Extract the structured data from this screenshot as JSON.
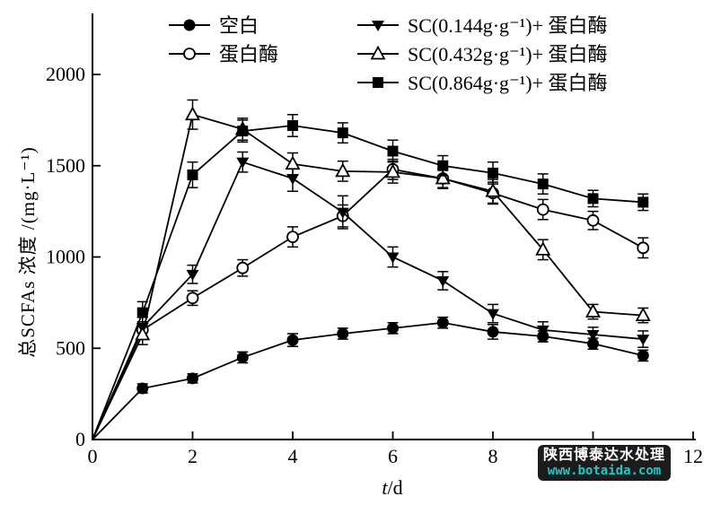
{
  "watermark": {
    "line1": "陕西博泰达水处理",
    "line2": "www.botaida.com",
    "bg_color": "#1c1c1c",
    "text_color": "#ffffff",
    "url_color": "#1fc9c9"
  },
  "chart_data": {
    "type": "line",
    "title": "",
    "xlabel_italic": "t",
    "xlabel_rest": "/d",
    "ylabel": "总SCFAs 浓度 /(mg·L⁻¹)",
    "xlim": [
      0,
      12
    ],
    "ylim": [
      0,
      2000
    ],
    "xticks": [
      0,
      2,
      4,
      6,
      8,
      10,
      12
    ],
    "yticks": [
      0,
      500,
      1000,
      1500,
      2000
    ],
    "grid": false,
    "legend_position": "top",
    "line_color": "#000000",
    "background": "#ffffff",
    "x": [
      0,
      1,
      2,
      3,
      4,
      5,
      6,
      7,
      8,
      9,
      10,
      11
    ],
    "series": [
      {
        "key": "blank",
        "name": "空白",
        "marker": "circle-filled",
        "values": [
          0,
          280,
          335,
          450,
          545,
          580,
          610,
          640,
          590,
          565,
          525,
          460
        ],
        "errors": [
          0,
          25,
          25,
          30,
          35,
          30,
          30,
          30,
          40,
          30,
          30,
          30
        ]
      },
      {
        "key": "protease",
        "name": "蛋白酶",
        "marker": "circle-open",
        "values": [
          0,
          600,
          775,
          940,
          1110,
          1225,
          1480,
          1430,
          1350,
          1260,
          1200,
          1050
        ],
        "errors": [
          0,
          45,
          40,
          45,
          55,
          60,
          55,
          50,
          60,
          55,
          50,
          55
        ]
      },
      {
        "key": "sc-0144",
        "name": "SC(0.144g·g⁻¹)+ 蛋白酶",
        "marker": "triangle-down-filled",
        "values": [
          0,
          615,
          905,
          1520,
          1430,
          1245,
          1000,
          870,
          690,
          600,
          575,
          550
        ],
        "errors": [
          0,
          55,
          50,
          55,
          70,
          90,
          55,
          50,
          50,
          45,
          40,
          45
        ]
      },
      {
        "key": "sc-0432",
        "name": "SC(0.432g·g⁻¹)+ 蛋白酶",
        "marker": "triangle-up-open",
        "values": [
          0,
          575,
          1780,
          1700,
          1510,
          1470,
          1465,
          1430,
          1360,
          1040,
          700,
          680
        ],
        "errors": [
          0,
          55,
          80,
          60,
          60,
          55,
          60,
          55,
          65,
          55,
          40,
          40
        ]
      },
      {
        "key": "sc-0864",
        "name": "SC(0.864g·g⁻¹)+ 蛋白酶",
        "marker": "square-filled",
        "values": [
          0,
          695,
          1450,
          1690,
          1720,
          1680,
          1580,
          1500,
          1460,
          1400,
          1320,
          1300
        ],
        "errors": [
          0,
          60,
          70,
          60,
          60,
          55,
          60,
          55,
          60,
          55,
          45,
          45
        ]
      }
    ]
  }
}
